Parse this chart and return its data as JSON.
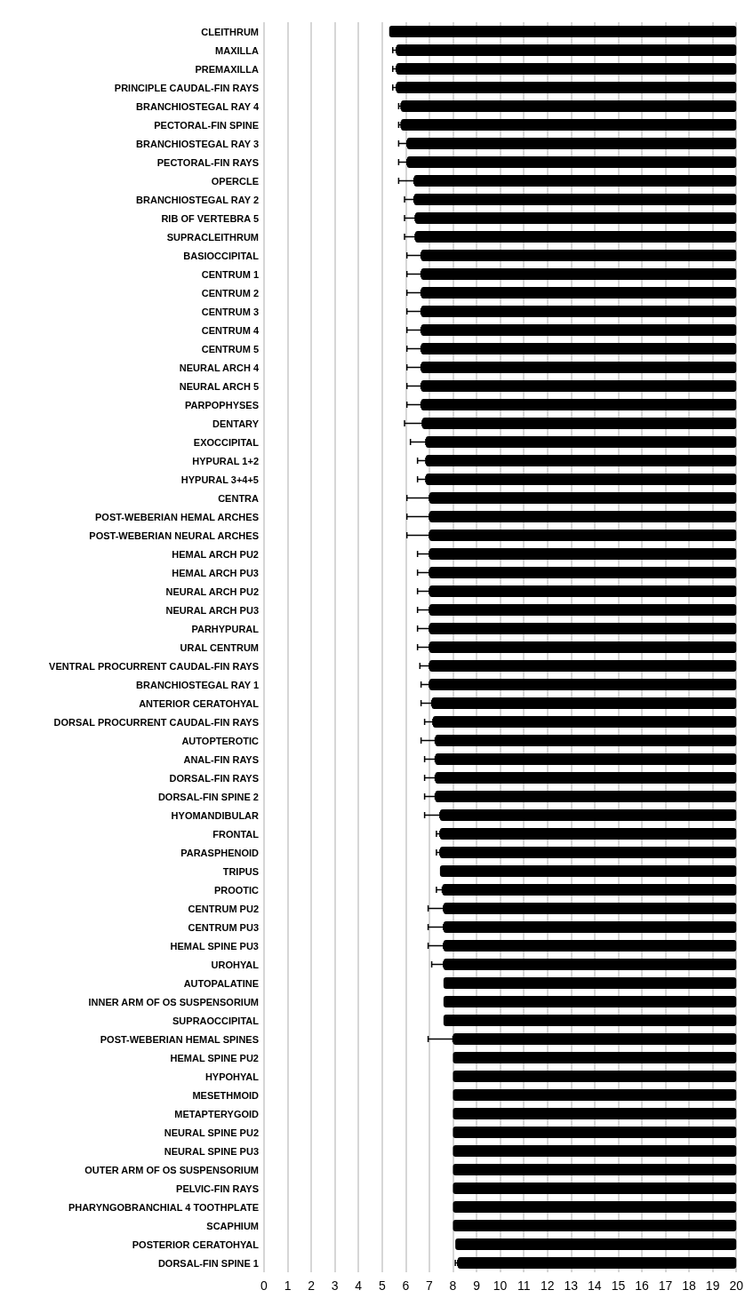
{
  "chart_data": {
    "type": "bar",
    "orientation": "horizontal",
    "color": "#000000",
    "categories": [
      "CLEITHRUM",
      "MAXILLA",
      "PREMAXILLA",
      "PRINCIPLE CAUDAL-FIN RAYS",
      "BRANCHIOSTEGAL RAY 4",
      "PECTORAL-FIN SPINE",
      "BRANCHIOSTEGAL RAY 3",
      "PECTORAL-FIN RAYS",
      "OPERCLE",
      "BRANCHIOSTEGAL RAY 2",
      "RIB OF VERTEBRA 5",
      "SUPRACLEITHRUM",
      "BASIOCCIPITAL",
      "CENTRUM 1",
      "CENTRUM 2",
      "CENTRUM 3",
      "CENTRUM 4",
      "CENTRUM 5",
      "NEURAL ARCH 4",
      "NEURAL ARCH 5",
      "PARPOPHYSES",
      "DENTARY",
      "EXOCCIPITAL",
      "HYPURAL 1+2",
      "HYPURAL 3+4+5",
      "CENTRA",
      "POST-WEBERIAN HEMAL ARCHES",
      "POST-WEBERIAN NEURAL ARCHES",
      "HEMAL ARCH PU2",
      "HEMAL ARCH PU3",
      "NEURAL ARCH PU2",
      "NEURAL ARCH PU3",
      "PARHYPURAL",
      "URAL CENTRUM",
      "VENTRAL PROCURRENT CAUDAL-FIN RAYS",
      "BRANCHIOSTEGAL RAY 1",
      "ANTERIOR CERATOHYAL",
      "DORSAL PROCURRENT CAUDAL-FIN RAYS",
      "AUTOPTEROTIC",
      "ANAL-FIN RAYS",
      "DORSAL-FIN RAYS",
      "DORSAL-FIN SPINE 2",
      "HYOMANDIBULAR",
      "FRONTAL",
      "PARASPHENOID",
      "TRIPUS",
      "PROOTIC",
      "CENTRUM PU2",
      "CENTRUM PU3",
      "HEMAL SPINE PU3",
      "UROHYAL",
      "AUTOPALATINE",
      "INNER ARM OF OS SUSPENSORIUM",
      "SUPRAOCCIPITAL",
      "POST-WEBERIAN HEMAL SPINES",
      "HEMAL SPINE PU2",
      "HYPOHYAL",
      "MESETHMOID",
      "METAPTERYGOID",
      "NEURAL SPINE PU2",
      "NEURAL SPINE PU3",
      "OUTER ARM OF OS SUSPENSORIUM",
      "PELVIC-FIN RAYS",
      "PHARYNGOBRANCHIAL 4 TOOTHPLATE",
      "SCAPHIUM",
      "POSTERIOR CERATOHYAL",
      "DORSAL-FIN SPINE 1"
    ],
    "base": [
      5.3,
      5.6,
      5.6,
      5.6,
      5.8,
      5.8,
      6.05,
      6.05,
      6.35,
      6.35,
      6.4,
      6.4,
      6.65,
      6.65,
      6.65,
      6.65,
      6.65,
      6.65,
      6.65,
      6.65,
      6.65,
      6.7,
      6.85,
      6.85,
      6.85,
      7,
      7,
      7,
      7,
      7,
      7,
      7,
      7,
      7,
      7,
      7,
      7.1,
      7.15,
      7.25,
      7.25,
      7.25,
      7.25,
      7.45,
      7.45,
      7.45,
      7.45,
      7.55,
      7.6,
      7.6,
      7.6,
      7.6,
      7.6,
      7.6,
      7.6,
      8,
      8,
      8,
      8,
      8,
      8,
      8,
      8,
      8,
      8,
      8,
      8.1,
      8.2
    ],
    "values": [
      14.7,
      14.4,
      14.4,
      14.4,
      14.2,
      14.2,
      13.95,
      13.95,
      13.65,
      13.65,
      13.6,
      13.6,
      13.35,
      13.35,
      13.35,
      13.35,
      13.35,
      13.35,
      13.35,
      13.35,
      13.35,
      13.3,
      13.15,
      13.15,
      13.15,
      13,
      13,
      13,
      13,
      13,
      13,
      13,
      13,
      13,
      13,
      13,
      12.9,
      12.85,
      12.75,
      12.75,
      12.75,
      12.75,
      12.55,
      12.55,
      12.55,
      12.55,
      12.45,
      12.4,
      12.4,
      12.4,
      12.4,
      12.4,
      12.4,
      12.4,
      12,
      12,
      12,
      12,
      12,
      12,
      12,
      12,
      12,
      12,
      12,
      11.9,
      11.8
    ],
    "errors": [
      null,
      [
        5.45,
        5.6
      ],
      [
        5.45,
        5.6
      ],
      [
        5.45,
        5.6
      ],
      [
        5.7,
        5.8
      ],
      [
        5.7,
        5.8
      ],
      [
        5.7,
        6.05
      ],
      [
        5.7,
        6.05
      ],
      [
        5.7,
        6.35
      ],
      [
        5.95,
        6.35
      ],
      [
        5.95,
        6.4
      ],
      [
        5.95,
        6.4
      ],
      [
        6.05,
        6.65
      ],
      [
        6.05,
        6.65
      ],
      [
        6.05,
        6.65
      ],
      [
        6.05,
        6.65
      ],
      [
        6.05,
        6.65
      ],
      [
        6.05,
        6.65
      ],
      [
        6.05,
        6.65
      ],
      [
        6.05,
        6.65
      ],
      [
        6.05,
        6.65
      ],
      [
        5.95,
        6.7
      ],
      [
        6.2,
        6.85
      ],
      [
        6.5,
        6.85
      ],
      [
        6.5,
        6.85
      ],
      [
        6.05,
        7
      ],
      [
        6.05,
        7
      ],
      [
        6.05,
        7
      ],
      [
        6.5,
        7
      ],
      [
        6.5,
        7
      ],
      [
        6.5,
        7
      ],
      [
        6.5,
        7
      ],
      [
        6.5,
        7
      ],
      [
        6.5,
        7
      ],
      [
        6.6,
        7
      ],
      [
        6.65,
        7
      ],
      [
        6.65,
        7.1
      ],
      [
        6.8,
        7.15
      ],
      [
        6.65,
        7.25
      ],
      [
        6.8,
        7.25
      ],
      [
        6.8,
        7.25
      ],
      [
        6.8,
        7.25
      ],
      [
        6.8,
        7.45
      ],
      [
        7.3,
        7.45
      ],
      [
        7.3,
        7.45
      ],
      null,
      [
        7.3,
        7.55
      ],
      [
        6.95,
        7.6
      ],
      [
        6.95,
        7.6
      ],
      [
        6.95,
        7.6
      ],
      [
        7.1,
        7.6
      ],
      null,
      null,
      null,
      [
        6.95,
        8
      ],
      null,
      null,
      null,
      null,
      null,
      null,
      null,
      null,
      null,
      null,
      null,
      [
        8.1,
        8.2
      ]
    ],
    "xlim": [
      0,
      20
    ],
    "xticks": [
      0,
      1,
      2,
      3,
      4,
      5,
      6,
      7,
      8,
      9,
      10,
      11,
      12,
      13,
      14,
      15,
      16,
      17,
      18,
      19,
      20
    ],
    "grid": "x"
  }
}
